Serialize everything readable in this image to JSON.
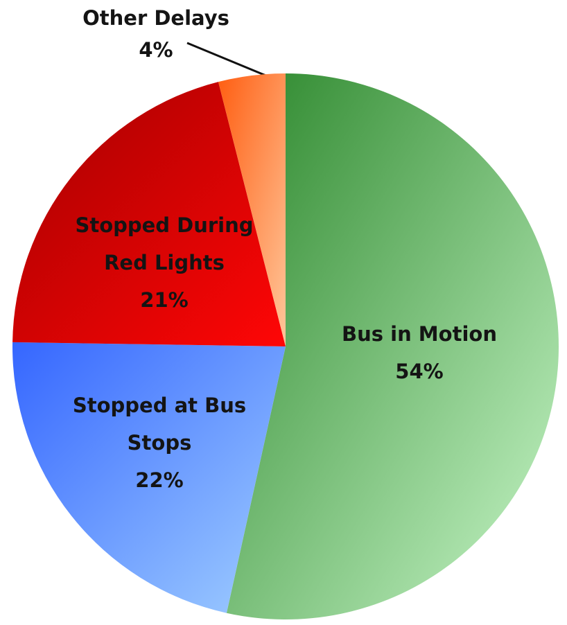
{
  "chart_data": {
    "type": "pie",
    "categories": [
      "Bus in Motion",
      "Stopped at Bus Stops",
      "Stopped During Red Lights",
      "Other Delays"
    ],
    "values": [
      54,
      22,
      21,
      4
    ],
    "value_labels": [
      "54%",
      "22%",
      "21%",
      "4%"
    ],
    "colors": [
      [
        "#2a862a",
        "#c9f7c9"
      ],
      [
        "#3566ff",
        "#a0ceff"
      ],
      [
        "#a30000",
        "#ff0606"
      ],
      [
        "#ff5e12",
        "#ffc69a"
      ]
    ]
  }
}
